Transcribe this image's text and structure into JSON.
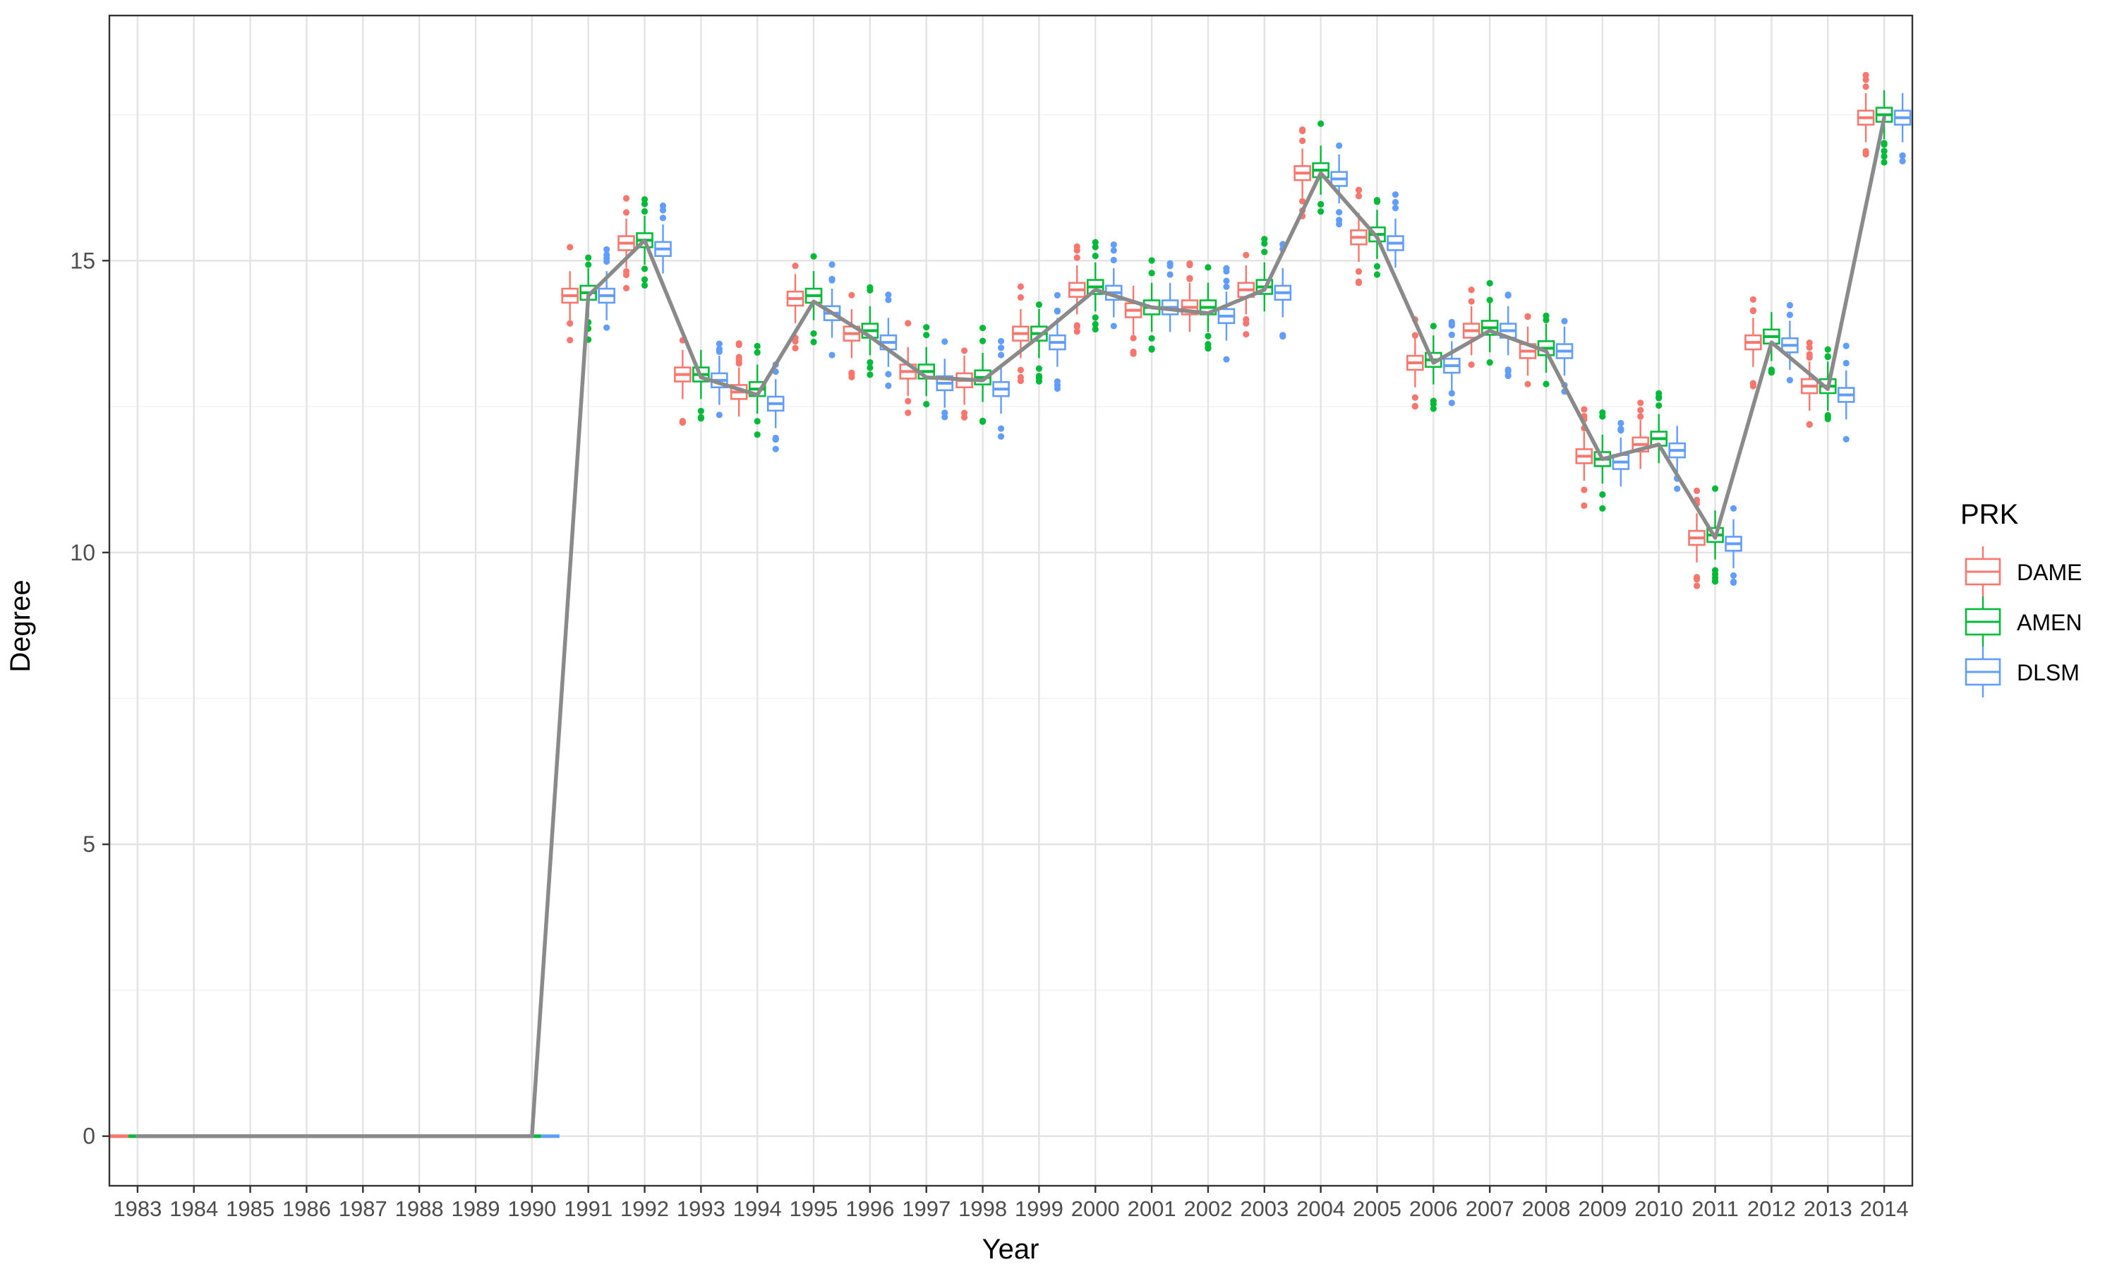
{
  "chart_data": {
    "type": "box",
    "xlabel": "Year",
    "ylabel": "Degree",
    "ylim": [
      -0.85,
      19.2
    ],
    "yticks": [
      0,
      5,
      10,
      15
    ],
    "grid": true,
    "legend_title": "PRK",
    "legend_position": "right",
    "categories": [
      "1983",
      "1984",
      "1985",
      "1986",
      "1987",
      "1988",
      "1989",
      "1990",
      "1991",
      "1992",
      "1993",
      "1994",
      "1995",
      "1996",
      "1997",
      "1998",
      "1999",
      "2000",
      "2001",
      "2002",
      "2003",
      "2004",
      "2005",
      "2006",
      "2007",
      "2008",
      "2009",
      "2010",
      "2011",
      "2012",
      "2013",
      "2014"
    ],
    "series": [
      {
        "name": "DAME",
        "color": "#F8766D",
        "median": [
          0,
          0,
          0,
          0,
          0,
          0,
          0,
          0,
          14.4,
          15.3,
          13.05,
          12.75,
          14.35,
          13.75,
          13.1,
          12.95,
          13.75,
          14.5,
          14.15,
          14.2,
          14.5,
          16.5,
          15.4,
          13.25,
          13.8,
          13.45,
          11.65,
          11.85,
          10.25,
          13.6,
          12.85,
          17.45
        ]
      },
      {
        "name": "AMEN",
        "color": "#00BA38",
        "median": [
          0,
          0,
          0,
          0,
          0,
          0,
          0,
          0,
          14.45,
          15.35,
          13.05,
          12.8,
          14.4,
          13.8,
          13.1,
          13.0,
          13.75,
          14.55,
          14.2,
          14.2,
          14.55,
          16.55,
          15.45,
          13.3,
          13.85,
          13.5,
          11.6,
          11.95,
          10.3,
          13.7,
          12.85,
          17.5
        ]
      },
      {
        "name": "DLSM",
        "color": "#619CFF",
        "median": [
          0,
          0,
          0,
          0,
          0,
          0,
          0,
          0,
          14.4,
          15.2,
          12.95,
          12.55,
          14.1,
          13.6,
          12.9,
          12.8,
          13.6,
          14.45,
          14.2,
          14.05,
          14.45,
          16.4,
          15.3,
          13.2,
          13.8,
          13.45,
          11.55,
          11.75,
          10.15,
          13.55,
          12.7,
          17.45
        ]
      }
    ],
    "mean_line": {
      "color": "#8A8A8A",
      "values": [
        0,
        0,
        0,
        0,
        0,
        0,
        0,
        0,
        14.4,
        15.35,
        13.0,
        12.7,
        14.3,
        13.7,
        13.0,
        12.95,
        13.7,
        14.5,
        14.2,
        14.1,
        14.5,
        16.5,
        15.4,
        13.25,
        13.8,
        13.45,
        11.6,
        11.85,
        10.25,
        13.6,
        12.8,
        17.45
      ]
    }
  }
}
